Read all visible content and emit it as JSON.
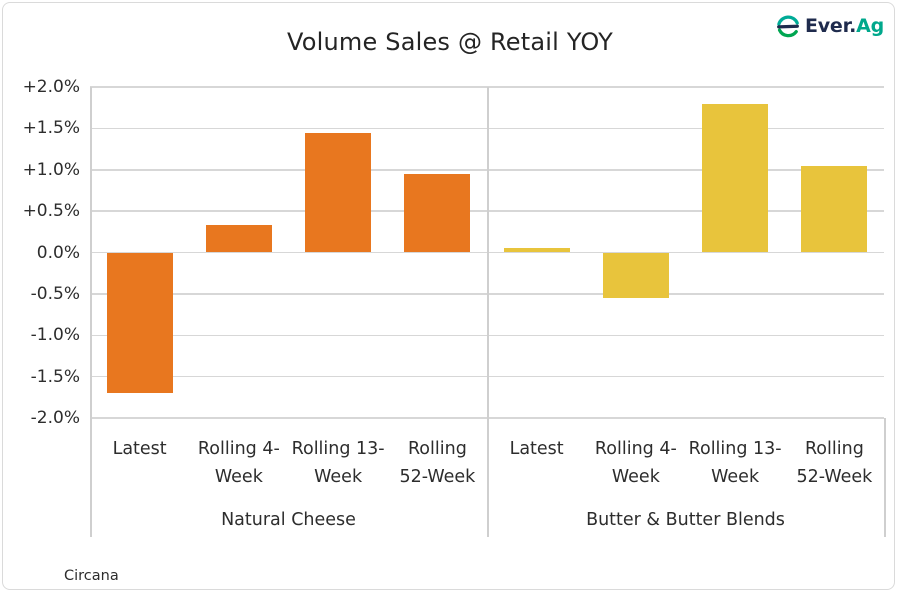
{
  "header": {
    "title": "Volume Sales @ Retail YOY"
  },
  "logo": {
    "icon": "ever-ag-e-icon",
    "text_primary": "Ever.",
    "text_secondary": "Ag",
    "color_primary": "#1F2B4D",
    "color_secondary": "#00A88C",
    "icon_color_top": "#00AB97",
    "icon_color_middle": "#1F2B4D",
    "icon_color_bottom": "#00A651"
  },
  "source": {
    "label": "Circana"
  },
  "colors": {
    "grid": "#D7D7D7",
    "axis_line": "#CFCFCF",
    "text": "#2D2D2D",
    "card_border": "#DADADA",
    "natural_cheese_bar": "#E8771F",
    "butter_bar": "#E8C43C"
  },
  "chart_data": {
    "type": "bar",
    "title": "Volume Sales @ Retail YOY",
    "xlabel": "",
    "ylabel": "",
    "unit": "% change YOY",
    "ylim": [
      -2.0,
      2.0
    ],
    "ytick_step": 0.5,
    "ytick_labels": [
      "+2.0%",
      "+1.5%",
      "+1.0%",
      "+0.5%",
      "0.0%",
      "-0.5%",
      "-1.0%",
      "-1.5%",
      "-2.0%"
    ],
    "grid": true,
    "legend": "none",
    "categories": [
      "Latest",
      "Rolling 4-Week",
      "Rolling 13-Week",
      "Rolling 52-Week"
    ],
    "category_label_lines": [
      [
        "Latest"
      ],
      [
        "Rolling 4-",
        "Week"
      ],
      [
        "Rolling 13-",
        "Week"
      ],
      [
        "Rolling",
        "52-Week"
      ]
    ],
    "groups": [
      {
        "label": "Natural Cheese",
        "color": "#E8771F",
        "values": [
          -1.7,
          0.33,
          1.45,
          0.95
        ]
      },
      {
        "label": "Butter & Butter Blends",
        "color": "#E8C43C",
        "values": [
          0.05,
          -0.55,
          1.8,
          1.05
        ]
      }
    ],
    "source": "Circana"
  }
}
